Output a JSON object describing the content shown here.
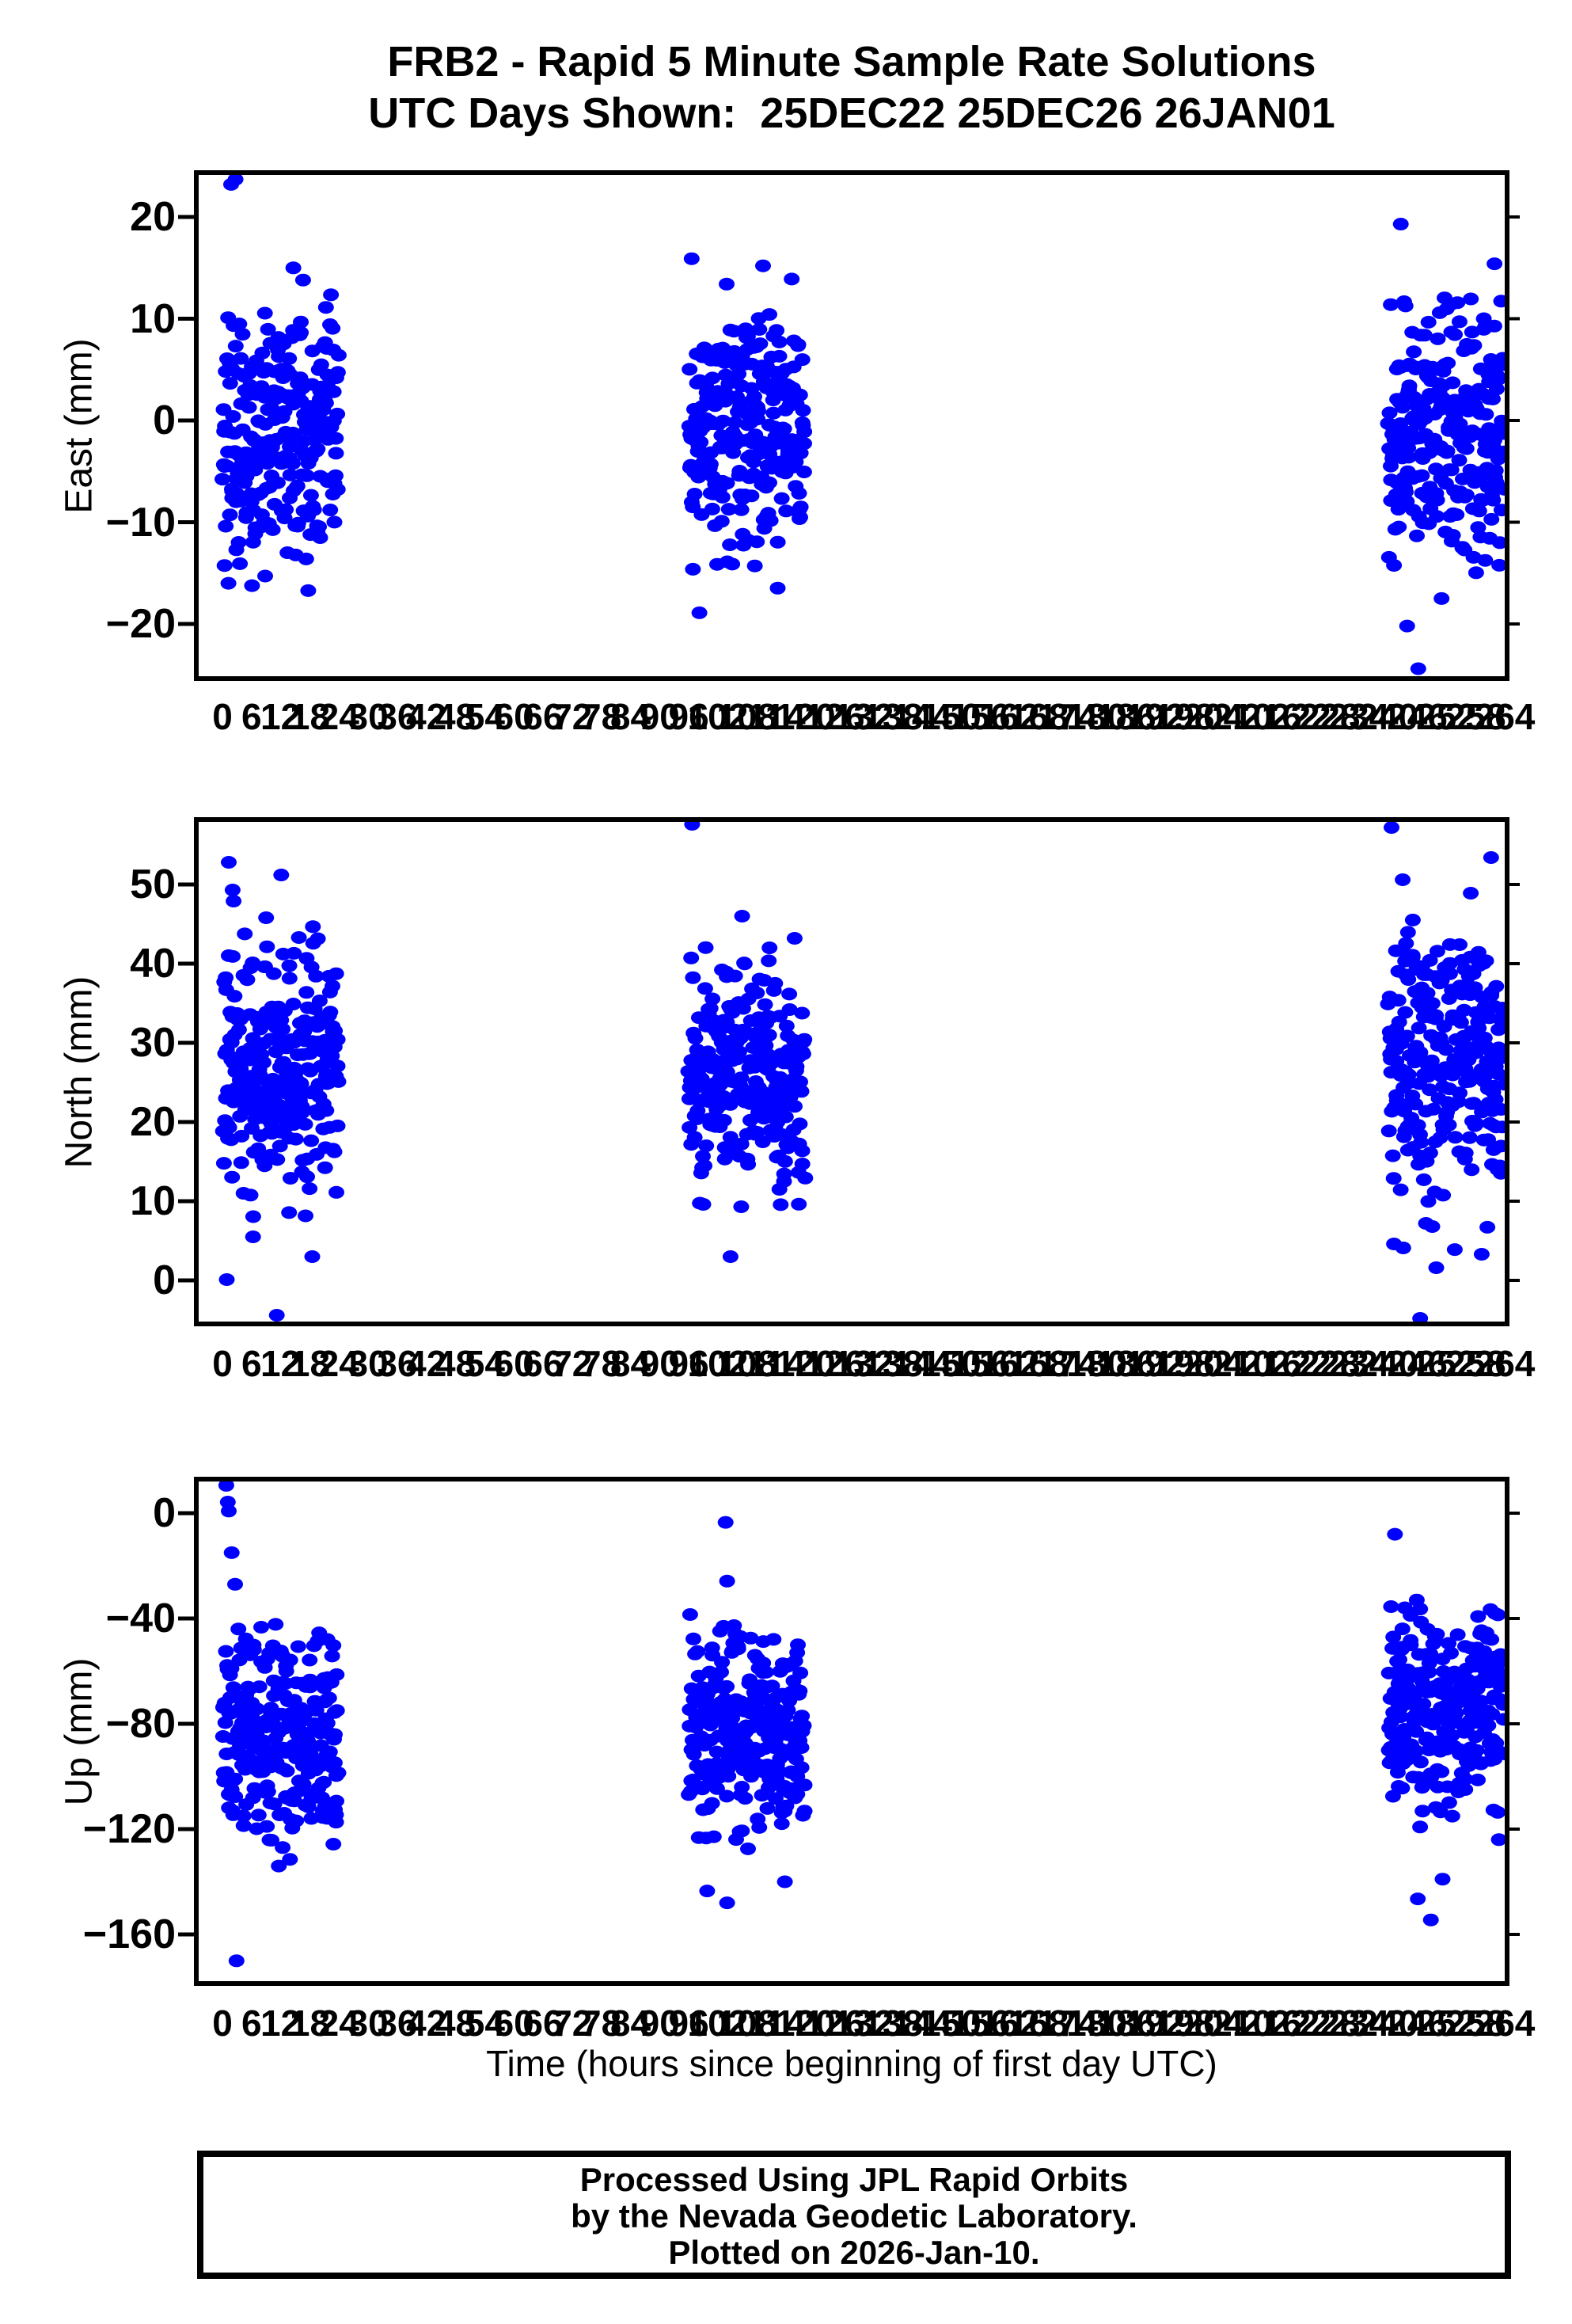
{
  "title": {
    "line1": "FRB2 - Rapid 5 Minute Sample Rate Solutions",
    "line2": "UTC Days Shown:  25DEC22 25DEC26 26JAN01"
  },
  "station": "FRB2",
  "days_shown": [
    {
      "label": "25DEC22",
      "start_hour": 0
    },
    {
      "label": "25DEC26",
      "start_hour": 96
    },
    {
      "label": "26JAN01",
      "start_hour": 240
    }
  ],
  "x_axis": {
    "label": "Time (hours since beginning of first day UTC)",
    "xlim": [
      -5.4,
      264.6
    ],
    "major_tick_step": 6,
    "minor_tick_step": 1.5,
    "ticks": [
      0,
      6,
      12,
      18,
      24,
      30,
      36,
      42,
      48,
      54,
      60,
      66,
      72,
      78,
      84,
      90,
      96,
      102,
      108,
      114,
      120,
      126,
      132,
      138,
      144,
      150,
      156,
      162,
      168,
      174,
      180,
      186,
      192,
      198,
      204,
      210,
      216,
      222,
      228,
      234,
      240,
      246,
      252,
      258,
      264
    ]
  },
  "marker": {
    "color": "#0000ff",
    "shape": "ellipse",
    "rx": 10,
    "ry": 8
  },
  "chart_data": [
    {
      "type": "scatter",
      "ylabel": "East (mm)",
      "ylim": [
        -25.4,
        24.4
      ],
      "yticks": [
        20,
        10,
        0,
        -10,
        -20
      ],
      "clusters": [
        {
          "t_start": 0.1,
          "t_end": 23.9,
          "n": 262,
          "mean": -1.3,
          "std": 6.3,
          "clip_min": -18.8,
          "clip_max": 13.0,
          "seed": 101
        },
        {
          "t_start": 96.0,
          "t_end": 119.9,
          "n": 262,
          "mean": -0.8,
          "std": 5.8,
          "clip_min": -16.5,
          "clip_max": 11.8,
          "seed": 102
        },
        {
          "t_start": 240.0,
          "t_end": 263.9,
          "n": 262,
          "mean": -1.8,
          "std": 6.8,
          "clip_min": -15.5,
          "clip_max": 12.6,
          "seed": 103
        }
      ],
      "outliers": [
        [
          1.8,
          23.2
        ],
        [
          2.7,
          23.7
        ],
        [
          14.6,
          15.0
        ],
        [
          16.6,
          13.8
        ],
        [
          96.6,
          15.9
        ],
        [
          103.8,
          13.4
        ],
        [
          111.3,
          15.2
        ],
        [
          117.2,
          13.9
        ],
        [
          98.2,
          -18.9
        ],
        [
          242.6,
          19.3
        ],
        [
          261.9,
          15.4
        ],
        [
          246.2,
          -24.4
        ],
        [
          243.9,
          -20.2
        ],
        [
          251.0,
          -17.5
        ]
      ]
    },
    {
      "type": "scatter",
      "ylabel": "North (mm)",
      "ylim": [
        -5.5,
        58.2
      ],
      "yticks": [
        50,
        40,
        30,
        20,
        10,
        0
      ],
      "clusters": [
        {
          "t_start": 0.1,
          "t_end": 23.9,
          "n": 262,
          "mean": 26.8,
          "std": 8.6,
          "clip_min": 8.0,
          "clip_max": 45.5,
          "seed": 201
        },
        {
          "t_start": 96.0,
          "t_end": 119.9,
          "n": 262,
          "mean": 26.0,
          "std": 7.6,
          "clip_min": 9.0,
          "clip_max": 43.5,
          "seed": 202
        },
        {
          "t_start": 240.0,
          "t_end": 263.9,
          "n": 262,
          "mean": 27.5,
          "std": 8.6,
          "clip_min": 1.5,
          "clip_max": 46.3,
          "seed": 203
        }
      ],
      "outliers": [
        [
          1.3,
          52.8
        ],
        [
          12.1,
          51.2
        ],
        [
          2.1,
          49.3
        ],
        [
          2.3,
          47.9
        ],
        [
          9.0,
          45.8
        ],
        [
          0.9,
          0.1
        ],
        [
          6.3,
          5.5
        ],
        [
          11.2,
          -4.4
        ],
        [
          18.5,
          3.0
        ],
        [
          96.7,
          57.6
        ],
        [
          107.0,
          46.0
        ],
        [
          117.8,
          43.2
        ],
        [
          99.0,
          9.6
        ],
        [
          106.8,
          9.3
        ],
        [
          104.6,
          3.0
        ],
        [
          240.7,
          57.2
        ],
        [
          243.0,
          50.6
        ],
        [
          261.2,
          53.4
        ],
        [
          257.0,
          48.9
        ],
        [
          246.6,
          -4.8
        ],
        [
          241.2,
          4.6
        ],
        [
          249.9,
          1.6
        ]
      ]
    },
    {
      "type": "scatter",
      "ylabel": "Up (mm)",
      "ylim": [
        -178.6,
        12.9
      ],
      "yticks": [
        0,
        -40,
        -80,
        -120,
        -160
      ],
      "clusters": [
        {
          "t_start": 0.1,
          "t_end": 23.9,
          "n": 262,
          "mean": -83,
          "std": 21,
          "clip_min": -126,
          "clip_max": -40,
          "seed": 301
        },
        {
          "t_start": 96.0,
          "t_end": 119.9,
          "n": 262,
          "mean": -82,
          "std": 20,
          "clip_min": -124,
          "clip_max": -41,
          "seed": 302
        },
        {
          "t_start": 240.0,
          "t_end": 263.9,
          "n": 262,
          "mean": -74,
          "std": 20,
          "clip_min": -121,
          "clip_max": -34,
          "seed": 303
        }
      ],
      "outliers": [
        [
          0.8,
          10.6
        ],
        [
          1.1,
          4.2
        ],
        [
          1.3,
          0.8
        ],
        [
          1.9,
          -15.0
        ],
        [
          2.6,
          -27.0
        ],
        [
          2.9,
          -170.0
        ],
        [
          11.6,
          -134.0
        ],
        [
          13.9,
          -131.5
        ],
        [
          12.4,
          -127.0
        ],
        [
          103.6,
          -3.5
        ],
        [
          103.9,
          -25.8
        ],
        [
          96.3,
          -38.5
        ],
        [
          103.9,
          -148.0
        ],
        [
          99.8,
          -143.5
        ],
        [
          115.8,
          -140.0
        ],
        [
          108.2,
          -127.5
        ],
        [
          241.4,
          -8.0
        ],
        [
          245.9,
          -33.0
        ],
        [
          240.6,
          -35.5
        ],
        [
          248.8,
          -154.5
        ],
        [
          246.1,
          -146.5
        ],
        [
          251.2,
          -139.0
        ],
        [
          262.8,
          -124.0
        ]
      ]
    }
  ],
  "footer_box": {
    "line1": "Processed Using JPL Rapid Orbits",
    "line2": "by the Nevada Geodetic Laboratory.",
    "line3": "Plotted on 2026-Jan-10."
  }
}
